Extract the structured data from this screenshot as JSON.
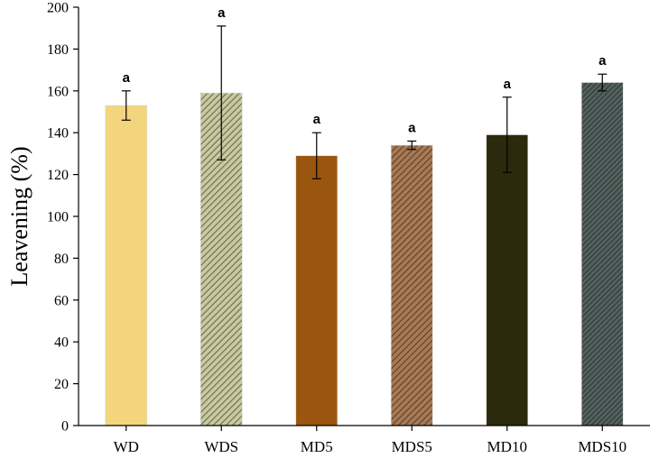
{
  "chart_data": {
    "type": "bar",
    "title": "",
    "xlabel": "",
    "ylabel": "Leavening (%)",
    "ylim": [
      0,
      200
    ],
    "yticks": [
      0,
      20,
      40,
      60,
      80,
      100,
      120,
      140,
      160,
      180,
      200
    ],
    "grid": false,
    "categories": [
      "WD",
      "WDS",
      "MD5",
      "MDS5",
      "MD10",
      "MDS10"
    ],
    "values": [
      153,
      159,
      129,
      134,
      139,
      164
    ],
    "error": [
      7,
      32,
      11,
      2,
      18,
      4
    ],
    "annotations": [
      "a",
      "a",
      "a",
      "a",
      "a",
      "a"
    ],
    "colors": [
      "#f2d57d",
      "#8b8f5a",
      "#9a560e",
      "#7a5535",
      "#2b2a0c",
      "#3a4744"
    ],
    "patterns": [
      "solid",
      "hatch",
      "solid",
      "hatch",
      "solid",
      "hatch"
    ]
  }
}
